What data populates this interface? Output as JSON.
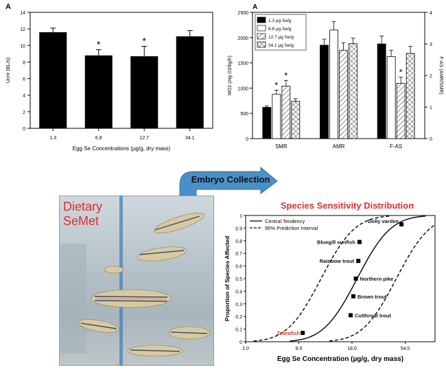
{
  "chart_data": [
    {
      "type": "bar",
      "panel_label": "A",
      "categories": [
        "1.3",
        "6.8",
        "12.7",
        "34.1"
      ],
      "values": [
        11.6,
        8.8,
        8.7,
        11.1
      ],
      "errors": [
        0.5,
        0.7,
        1.2,
        0.7
      ],
      "significant": [
        false,
        true,
        true,
        false
      ],
      "sig_marker": "*",
      "xlabel": "Egg Se Concentrations (µg/g, dry mass)",
      "ylabel": "Ucrit (BL/s)",
      "ylim": [
        0,
        14
      ],
      "yticks": [
        "0",
        "2",
        "4",
        "6",
        "8",
        "10",
        "12",
        "14"
      ],
      "grid": false
    },
    {
      "type": "bar",
      "panel_label": "A",
      "categories": [
        "SMR",
        "AMR",
        "F-AS"
      ],
      "series": [
        {
          "name": "1.3 µg Se/g",
          "values": [
            620,
            1850,
            3.0
          ],
          "errors": [
            30,
            120,
            0.25
          ],
          "fill": "#000000"
        },
        {
          "name": "6.8 µg Se/g",
          "values": [
            880,
            2150,
            2.6
          ],
          "errors": [
            80,
            170,
            0.2
          ],
          "fill": "#ffffff"
        },
        {
          "name": "12.7 µg Se/g",
          "values": [
            1040,
            1750,
            1.75
          ],
          "errors": [
            110,
            150,
            0.2
          ],
          "fill": "hatch"
        },
        {
          "name": "34.1 µg Se/g",
          "values": [
            740,
            1880,
            2.7
          ],
          "errors": [
            50,
            110,
            0.22
          ],
          "fill": "cross"
        }
      ],
      "significant": [
        [
          false,
          true,
          true,
          false
        ],
        [
          false,
          false,
          false,
          false
        ],
        [
          false,
          false,
          true,
          false
        ]
      ],
      "sig_marker": "*",
      "ylabel": "MO2 (mg O2/kg/h)",
      "y2label": "F-AS (AMR/SMR)",
      "ylim": [
        0,
        2500
      ],
      "y2lim": [
        0,
        4
      ],
      "yticks": [
        "0",
        "500",
        "1000",
        "1500",
        "2000",
        "2500"
      ],
      "y2ticks": [
        "0",
        "1",
        "2",
        "3",
        "4"
      ],
      "legend": "top-left",
      "grid": false
    },
    {
      "type": "scatter",
      "title": "Species Sensitivity Distribution",
      "xlabel": "Egg Se Concentration (µg/g, dry mass)",
      "ylabel": "Proportion of Species Affected",
      "xscale": "log",
      "xlim": [
        2.0,
        100
      ],
      "xticks": [
        "2.0",
        "6.0",
        "18.0",
        "54.0"
      ],
      "xtick_values": [
        2.0,
        6.0,
        18.0,
        54.0
      ],
      "ylim": [
        0,
        1
      ],
      "yticks": [
        "0",
        "0.1",
        "0.2",
        "0.3",
        "0.4",
        "0.5",
        "0.6",
        "0.7",
        "0.8",
        "0.9",
        "1"
      ],
      "points": [
        {
          "name": "Zebrafish",
          "x": 6.5,
          "y": 0.07,
          "color": "#e0302a"
        },
        {
          "name": "Cutthroat trout",
          "x": 17.5,
          "y": 0.21
        },
        {
          "name": "Brown trout",
          "x": 18.5,
          "y": 0.36
        },
        {
          "name": "Northern pike",
          "x": 19.5,
          "y": 0.5
        },
        {
          "name": "Rainbow trout",
          "x": 20.5,
          "y": 0.64
        },
        {
          "name": "Bluegill sunfish",
          "x": 21.0,
          "y": 0.79
        },
        {
          "name": "Dolly varden",
          "x": 50.0,
          "y": 0.93
        }
      ],
      "lines": [
        {
          "name": "Central Tendency",
          "style": "solid"
        },
        {
          "name": "95% Prediction Interval",
          "style": "dashed"
        }
      ],
      "legend": "top-left"
    }
  ],
  "graphics": {
    "arrow_label": "Embryo Collection",
    "photo_label_line1": "Dietary",
    "photo_label_line2": "SeMet",
    "photo_name": "zebrafish-tank-photo"
  },
  "colors": {
    "accent": "#e0302a",
    "arrow": "#4a90c8"
  }
}
